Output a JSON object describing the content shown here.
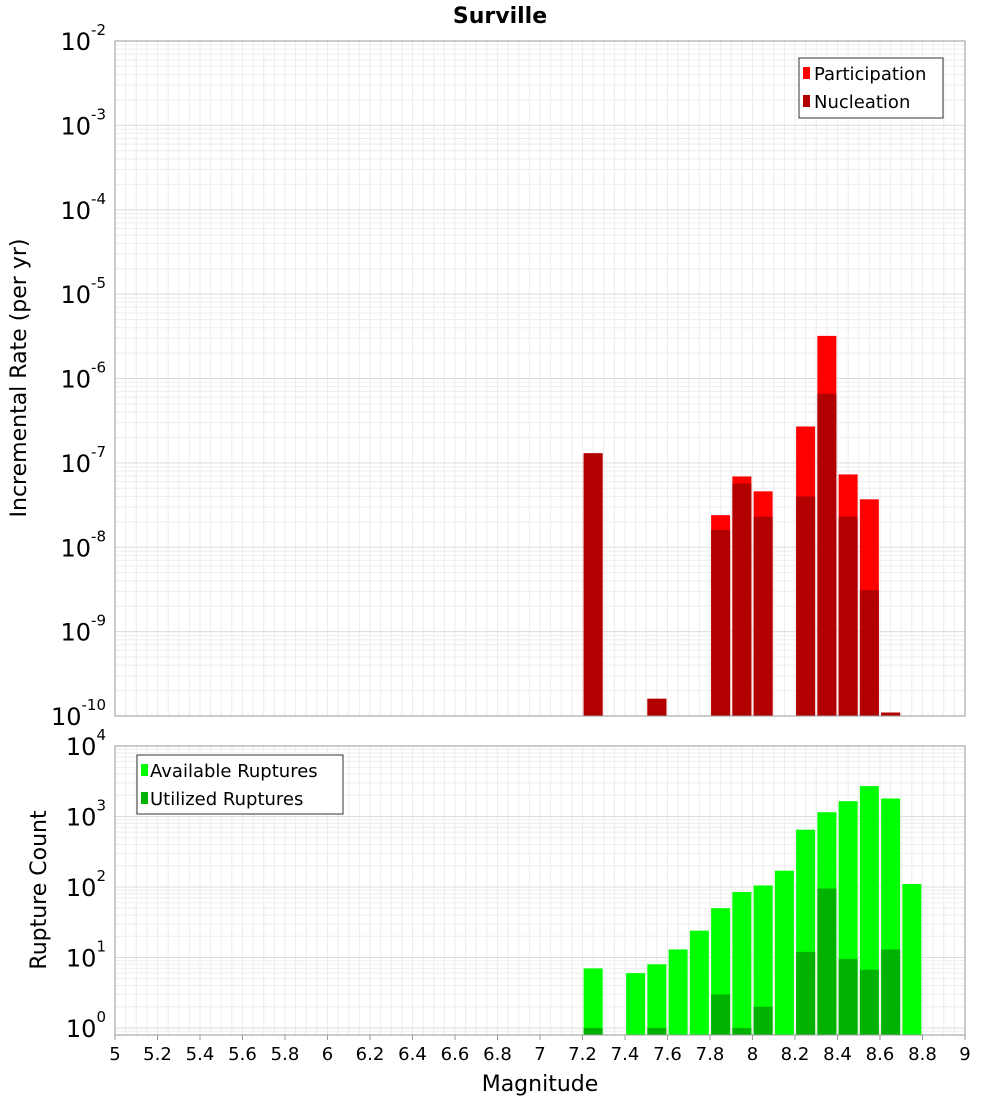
{
  "chart_data": [
    {
      "type": "bar",
      "title": "Surville",
      "xlabel": "",
      "ylabel": "Incremental Rate (per yr)",
      "yscale": "log",
      "xlim": [
        5,
        9
      ],
      "ylim_exponents": [
        -10,
        -2
      ],
      "ytick_base": "10",
      "yticks": [
        -2,
        -3,
        -4,
        -5,
        -6,
        -7,
        -8,
        -9,
        -10
      ],
      "legend_position": "top-right",
      "legend": [
        {
          "label": "Participation",
          "color": "#ff0000"
        },
        {
          "label": "Nucleation",
          "color": "#b20000"
        }
      ],
      "series": [
        {
          "name": "Participation",
          "color": "#ff0000",
          "points": [
            {
              "x": 7.25,
              "y": 1.3e-07
            },
            {
              "x": 7.55,
              "y": 1.6e-10
            },
            {
              "x": 7.85,
              "y": 2.4e-08
            },
            {
              "x": 7.95,
              "y": 6.9e-08
            },
            {
              "x": 8.05,
              "y": 4.6e-08
            },
            {
              "x": 8.25,
              "y": 2.7e-07
            },
            {
              "x": 8.35,
              "y": 3.2e-06
            },
            {
              "x": 8.45,
              "y": 7.3e-08
            },
            {
              "x": 8.55,
              "y": 3.7e-08
            },
            {
              "x": 8.65,
              "y": 1.1e-10
            }
          ]
        },
        {
          "name": "Nucleation",
          "color": "#b20000",
          "points": [
            {
              "x": 7.25,
              "y": 1.3e-07
            },
            {
              "x": 7.55,
              "y": 1.6e-10
            },
            {
              "x": 7.85,
              "y": 1.6e-08
            },
            {
              "x": 7.95,
              "y": 5.7e-08
            },
            {
              "x": 8.05,
              "y": 2.3e-08
            },
            {
              "x": 8.25,
              "y": 4e-08
            },
            {
              "x": 8.35,
              "y": 6.6e-07
            },
            {
              "x": 8.45,
              "y": 2.3e-08
            },
            {
              "x": 8.55,
              "y": 3.1e-09
            },
            {
              "x": 8.65,
              "y": 1.1e-10
            }
          ]
        }
      ]
    },
    {
      "type": "bar",
      "title": "",
      "xlabel": "Magnitude",
      "ylabel": "Rupture Count",
      "yscale": "log",
      "xlim": [
        5,
        9
      ],
      "ylim_exponents": [
        -0.1,
        4
      ],
      "ytick_base": "10",
      "yticks": [
        4,
        3,
        2,
        1,
        0
      ],
      "xticks": [
        "5",
        "5.2",
        "5.4",
        "5.6",
        "5.8",
        "6",
        "6.2",
        "6.4",
        "6.6",
        "6.8",
        "7",
        "7.2",
        "7.4",
        "7.6",
        "7.8",
        "8",
        "8.2",
        "8.4",
        "8.6",
        "8.8",
        "9"
      ],
      "legend_position": "top-left",
      "legend": [
        {
          "label": "Available Ruptures",
          "color": "#00ff00"
        },
        {
          "label": "Utilized Ruptures",
          "color": "#00b200"
        }
      ],
      "series": [
        {
          "name": "Available Ruptures",
          "color": "#00ff00",
          "points": [
            {
              "x": 7.25,
              "y": 7
            },
            {
              "x": 7.45,
              "y": 6
            },
            {
              "x": 7.55,
              "y": 8
            },
            {
              "x": 7.65,
              "y": 13
            },
            {
              "x": 7.75,
              "y": 24
            },
            {
              "x": 7.85,
              "y": 50
            },
            {
              "x": 7.95,
              "y": 85
            },
            {
              "x": 8.05,
              "y": 105
            },
            {
              "x": 8.15,
              "y": 170
            },
            {
              "x": 8.25,
              "y": 650
            },
            {
              "x": 8.35,
              "y": 1150
            },
            {
              "x": 8.45,
              "y": 1650
            },
            {
              "x": 8.55,
              "y": 2700
            },
            {
              "x": 8.65,
              "y": 1800
            },
            {
              "x": 8.75,
              "y": 110
            }
          ]
        },
        {
          "name": "Utilized Ruptures",
          "color": "#00b200",
          "points": [
            {
              "x": 7.25,
              "y": 1
            },
            {
              "x": 7.55,
              "y": 1
            },
            {
              "x": 7.85,
              "y": 3
            },
            {
              "x": 7.95,
              "y": 1
            },
            {
              "x": 8.05,
              "y": 2
            },
            {
              "x": 8.25,
              "y": 12
            },
            {
              "x": 8.35,
              "y": 95
            },
            {
              "x": 8.45,
              "y": 9.5
            },
            {
              "x": 8.55,
              "y": 6.7
            },
            {
              "x": 8.65,
              "y": 13
            }
          ]
        }
      ]
    }
  ]
}
